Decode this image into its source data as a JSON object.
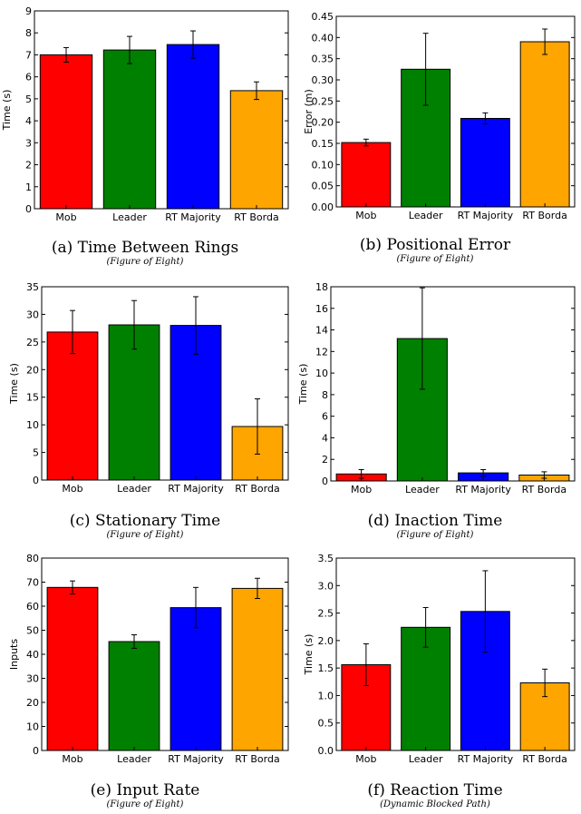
{
  "chart_data": [
    {
      "type": "bar",
      "categories": [
        "Mob",
        "Leader",
        "RT Majority",
        "RT Borda"
      ],
      "values": [
        7.0,
        7.22,
        7.47,
        5.37
      ],
      "errors": [
        0.33,
        0.62,
        0.62,
        0.4
      ],
      "colors": [
        "#ff0000",
        "#008000",
        "#0000ff",
        "#ffa500"
      ],
      "ylabel": "Time (s)",
      "ylim": [
        0,
        9
      ],
      "yticks": [
        "0",
        "1",
        "2",
        "3",
        "4",
        "5",
        "6",
        "7",
        "8",
        "9"
      ],
      "caption": "(a) Time Between Rings",
      "subcaption": "(Figure of Eight)"
    },
    {
      "type": "bar",
      "categories": [
        "Mob",
        "Leader",
        "RT Majority",
        "RT Borda"
      ],
      "values": [
        0.152,
        0.325,
        0.209,
        0.39
      ],
      "errors": [
        0.008,
        0.085,
        0.013,
        0.03
      ],
      "colors": [
        "#ff0000",
        "#008000",
        "#0000ff",
        "#ffa500"
      ],
      "ylabel": "Error (m)",
      "ylim": [
        0,
        0.45
      ],
      "yticks": [
        "0.00",
        "0.05",
        "0.10",
        "0.15",
        "0.20",
        "0.25",
        "0.30",
        "0.35",
        "0.40",
        "0.45"
      ],
      "caption": "(b) Positional Error",
      "subcaption": "(Figure of Eight)"
    },
    {
      "type": "bar",
      "categories": [
        "Mob",
        "Leader",
        "RT Majority",
        "RT Borda"
      ],
      "values": [
        26.8,
        28.1,
        28.0,
        9.7
      ],
      "errors": [
        3.9,
        4.4,
        5.2,
        5.0
      ],
      "colors": [
        "#ff0000",
        "#008000",
        "#0000ff",
        "#ffa500"
      ],
      "ylabel": "Time (s)",
      "ylim": [
        0,
        35
      ],
      "yticks": [
        "0",
        "5",
        "10",
        "15",
        "20",
        "25",
        "30",
        "35"
      ],
      "caption": "(c) Stationary Time",
      "subcaption": "(Figure of Eight)"
    },
    {
      "type": "bar",
      "categories": [
        "Mob",
        "Leader",
        "RT Majority",
        "RT Borda"
      ],
      "values": [
        0.65,
        13.2,
        0.75,
        0.55
      ],
      "errors": [
        0.4,
        4.7,
        0.3,
        0.3
      ],
      "colors": [
        "#ff0000",
        "#008000",
        "#0000ff",
        "#ffa500"
      ],
      "ylabel": "Time (s)",
      "ylim": [
        0,
        18
      ],
      "yticks": [
        "0",
        "2",
        "4",
        "6",
        "8",
        "10",
        "12",
        "14",
        "16",
        "18"
      ],
      "caption": "(d) Inaction Time",
      "subcaption": "(Figure of Eight)"
    },
    {
      "type": "bar",
      "categories": [
        "Mob",
        "Leader",
        "RT Majority",
        "RT Borda"
      ],
      "values": [
        67.8,
        45.3,
        59.4,
        67.4
      ],
      "errors": [
        2.7,
        2.8,
        8.4,
        4.2
      ],
      "colors": [
        "#ff0000",
        "#008000",
        "#0000ff",
        "#ffa500"
      ],
      "ylabel": "Inputs",
      "ylim": [
        0,
        80
      ],
      "yticks": [
        "0",
        "10",
        "20",
        "30",
        "40",
        "50",
        "60",
        "70",
        "80"
      ],
      "caption": "(e) Input Rate",
      "subcaption": "(Figure of Eight)"
    },
    {
      "type": "bar",
      "categories": [
        "Mob",
        "Leader",
        "RT Majority",
        "RT Borda"
      ],
      "values": [
        1.56,
        2.24,
        2.53,
        1.23
      ],
      "errors": [
        0.38,
        0.36,
        0.74,
        0.25
      ],
      "colors": [
        "#ff0000",
        "#008000",
        "#0000ff",
        "#ffa500"
      ],
      "ylabel": "Time (s)",
      "ylim": [
        0,
        3.5
      ],
      "yticks": [
        "0.0",
        "0.5",
        "1.0",
        "1.5",
        "2.0",
        "2.5",
        "3.0",
        "3.5"
      ],
      "caption": "(f) Reaction Time",
      "subcaption": "(Dynamic Blocked Path)"
    }
  ]
}
